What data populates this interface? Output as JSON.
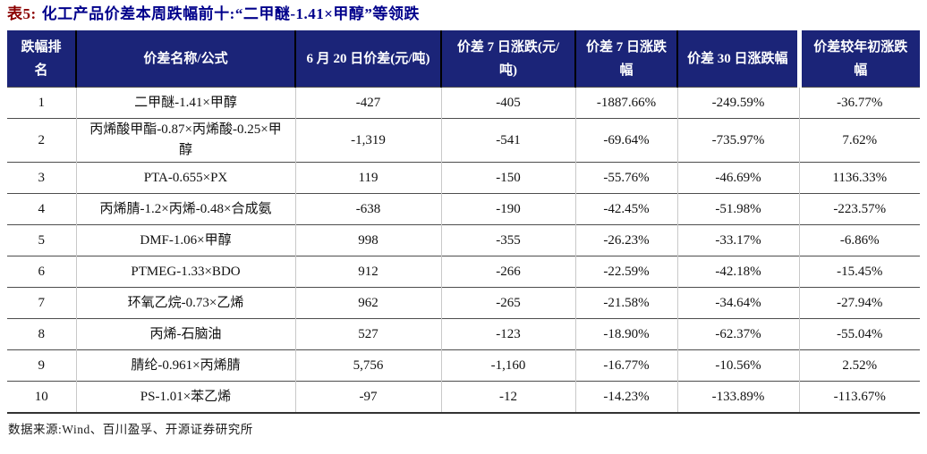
{
  "title": {
    "prefix": "表5:",
    "text": "化工产品价差本周跌幅前十:“二甲醚-1.41×甲醇”等领跌"
  },
  "table": {
    "headers": [
      "跌幅排名",
      "价差名称/公式",
      "6 月 20 日价差(元/吨)",
      "价差 7 日涨跌(元/吨)",
      "价差 7 日涨跌幅",
      "价差 30 日涨跌幅",
      "价差较年初涨跌幅"
    ],
    "rows": [
      [
        "1",
        "二甲醚-1.41×甲醇",
        "-427",
        "-405",
        "-1887.66%",
        "-249.59%",
        "-36.77%"
      ],
      [
        "2",
        "丙烯酸甲酯-0.87×丙烯酸-0.25×甲醇",
        "-1,319",
        "-541",
        "-69.64%",
        "-735.97%",
        "7.62%"
      ],
      [
        "3",
        "PTA-0.655×PX",
        "119",
        "-150",
        "-55.76%",
        "-46.69%",
        "1136.33%"
      ],
      [
        "4",
        "丙烯腈-1.2×丙烯-0.48×合成氨",
        "-638",
        "-190",
        "-42.45%",
        "-51.98%",
        "-223.57%"
      ],
      [
        "5",
        "DMF-1.06×甲醇",
        "998",
        "-355",
        "-26.23%",
        "-33.17%",
        "-6.86%"
      ],
      [
        "6",
        "PTMEG-1.33×BDO",
        "912",
        "-266",
        "-22.59%",
        "-42.18%",
        "-15.45%"
      ],
      [
        "7",
        "环氧乙烷-0.73×乙烯",
        "962",
        "-265",
        "-21.58%",
        "-34.64%",
        "-27.94%"
      ],
      [
        "8",
        "丙烯-石脑油",
        "527",
        "-123",
        "-18.90%",
        "-62.37%",
        "-55.04%"
      ],
      [
        "9",
        "腈纶-0.961×丙烯腈",
        "5,756",
        "-1,160",
        "-16.77%",
        "-10.56%",
        "2.52%"
      ],
      [
        "10",
        "PS-1.01×苯乙烯",
        "-97",
        "-12",
        "-14.23%",
        "-133.89%",
        "-113.67%"
      ]
    ]
  },
  "footer": {
    "source": "数据来源:Wind、百川盈孚、开源证券研究所"
  },
  "colors": {
    "header_bg": "#1b2478",
    "title_blue": "#00008b",
    "title_red": "#8b0000",
    "body_text": "#111111",
    "row_divider": "#4d4d4d",
    "column_divider": "#c9c9c9"
  }
}
